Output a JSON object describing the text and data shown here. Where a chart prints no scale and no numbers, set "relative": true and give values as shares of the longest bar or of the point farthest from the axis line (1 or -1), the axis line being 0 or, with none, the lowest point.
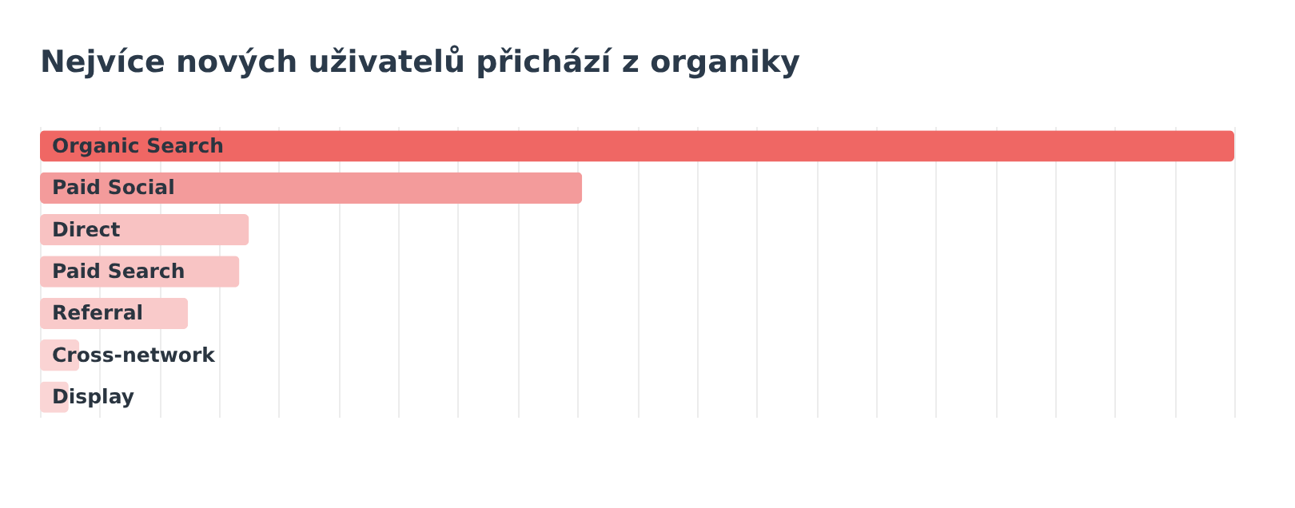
{
  "chart_data": {
    "type": "bar",
    "orientation": "horizontal",
    "relative": true,
    "title": "Nejvíce nových uživatelů přichází z organiky",
    "categories": [
      "Organic Search",
      "Paid Social",
      "Direct",
      "Paid Search",
      "Referral",
      "Cross-network",
      "Display"
    ],
    "values": [
      1,
      0.454,
      0.175,
      0.167,
      0.124,
      0.033,
      0.024
    ],
    "colors": [
      "#ef6764",
      "#f39b9b",
      "#f8c2c2",
      "#f8c4c4",
      "#f9caca",
      "#fad3d3",
      "#fad5d5"
    ],
    "grid": "x"
  }
}
